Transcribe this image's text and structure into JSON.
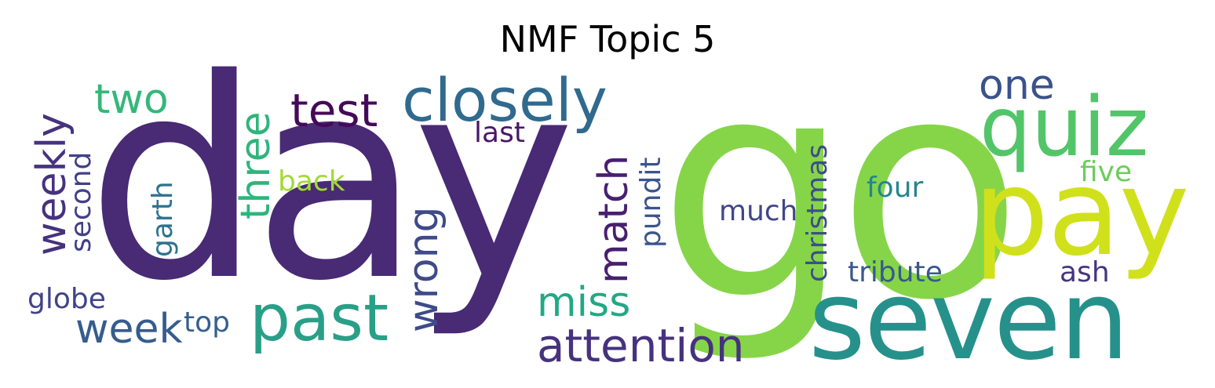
{
  "title": "NMF Topic 5",
  "words": [
    {
      "text": "day",
      "color": "#482a75"
    },
    {
      "text": "go",
      "color": "#86d549"
    },
    {
      "text": "seven",
      "color": "#26918b"
    },
    {
      "text": "pay",
      "color": "#d0e11c"
    },
    {
      "text": "quiz",
      "color": "#52c569"
    },
    {
      "text": "closely",
      "color": "#306a8e"
    },
    {
      "text": "past",
      "color": "#2a9f88"
    },
    {
      "text": "attention",
      "color": "#46327e"
    },
    {
      "text": "test",
      "color": "#440a59"
    },
    {
      "text": "miss",
      "color": "#22a884"
    },
    {
      "text": "week",
      "color": "#365c8d"
    },
    {
      "text": "one",
      "color": "#3b528b"
    },
    {
      "text": "two",
      "color": "#35b779"
    },
    {
      "text": "weekly",
      "color": "#46327e"
    },
    {
      "text": "three",
      "color": "#2fb47c"
    },
    {
      "text": "wrong",
      "color": "#3e4a89"
    },
    {
      "text": "match",
      "color": "#481f70"
    },
    {
      "text": "back",
      "color": "#a2da37"
    },
    {
      "text": "last",
      "color": "#481769"
    },
    {
      "text": "globe",
      "color": "#414487"
    },
    {
      "text": "top",
      "color": "#355f8d"
    },
    {
      "text": "second",
      "color": "#424086"
    },
    {
      "text": "garth",
      "color": "#2c728e"
    },
    {
      "text": "pundit",
      "color": "#3a548c"
    },
    {
      "text": "much",
      "color": "#404688"
    },
    {
      "text": "christmas",
      "color": "#3d4d8a"
    },
    {
      "text": "four",
      "color": "#25858e"
    },
    {
      "text": "tribute",
      "color": "#38598c"
    },
    {
      "text": "ash",
      "color": "#453581"
    },
    {
      "text": "five",
      "color": "#6ccd5a"
    }
  ]
}
